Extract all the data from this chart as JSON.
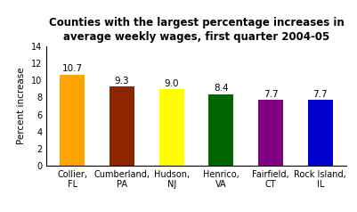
{
  "categories": [
    "Collier,\nFL",
    "Cumberland,\nPA",
    "Hudson,\nNJ",
    "Henrico,\nVA",
    "Fairfield,\nCT",
    "Rock Island,\nIL"
  ],
  "values": [
    10.7,
    9.3,
    9.0,
    8.4,
    7.7,
    7.7
  ],
  "bar_colors": [
    "#FFA500",
    "#8B2500",
    "#FFFF00",
    "#006400",
    "#800080",
    "#0000CD"
  ],
  "title": "Counties with the largest percentage increases in\naverage weekly wages, first quarter 2004-05",
  "ylabel": "Percent increase",
  "ylim": [
    0,
    14
  ],
  "yticks": [
    0,
    2,
    4,
    6,
    8,
    10,
    12,
    14
  ],
  "title_fontsize": 8.5,
  "label_fontsize": 7.5,
  "tick_fontsize": 7,
  "value_fontsize": 7.5,
  "background_color": "#ffffff"
}
